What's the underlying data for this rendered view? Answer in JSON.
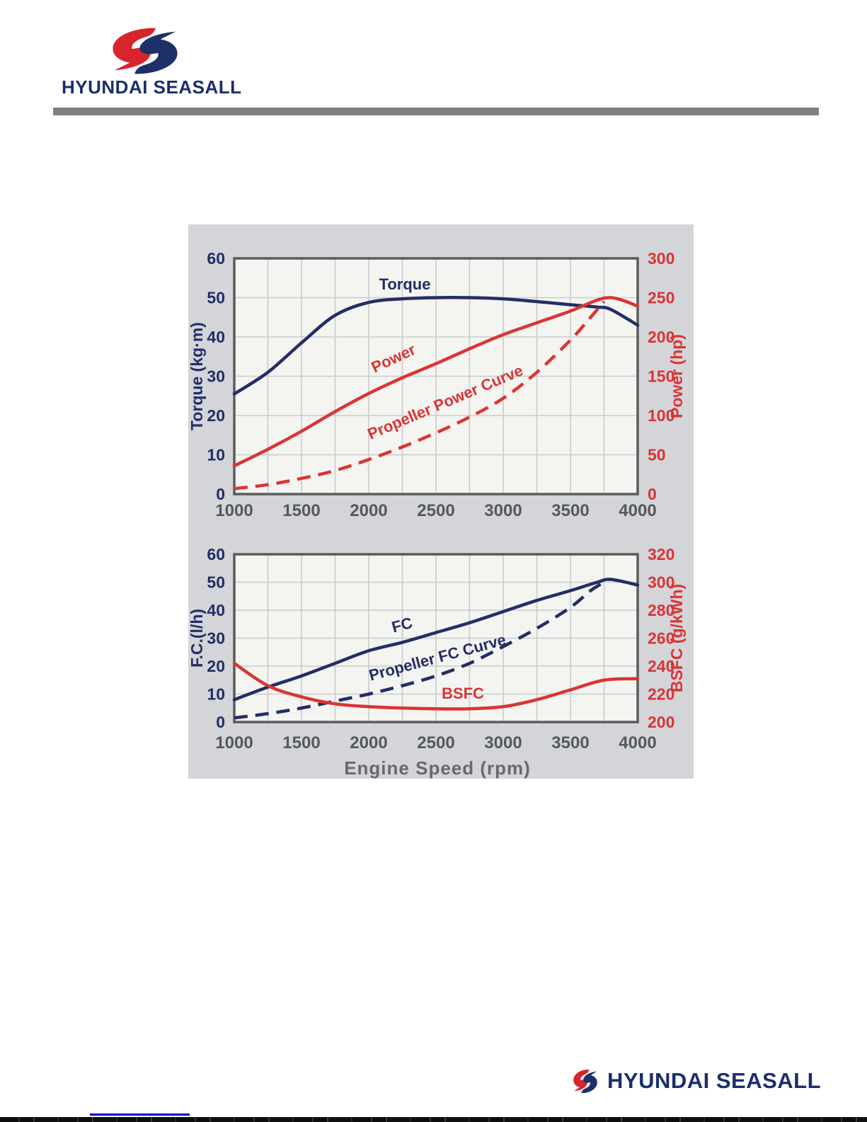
{
  "header": {
    "brand": "HYUNDAI SEASALL"
  },
  "footer": {
    "brand": "HYUNDAI SEASALL"
  },
  "colors": {
    "navy": "#232e66",
    "red": "#d93534",
    "brand_navy": "#1c2e6b",
    "logo_red": "#d8242c",
    "logo_navy": "#1e3068",
    "panel_bg": "#d3d5d9",
    "plot_bg": "#f4f4f1",
    "grid": "#c9cbce",
    "plot_border": "#5a5c5e",
    "tick_gray": "#55585e",
    "axis_gray": "#66696e",
    "header_bar": "#7f8080",
    "link_blue": "#0000cc"
  },
  "chart_data": [
    {
      "type": "line",
      "title": "",
      "xlabel": "",
      "x_range": [
        1000,
        4000
      ],
      "x_ticks": [
        1000,
        1500,
        2000,
        2500,
        3000,
        3500,
        4000
      ],
      "x_minor_step": 250,
      "grid": true,
      "legend_position": "inline-labels",
      "left_axis": {
        "label": "Torque (kg·m)",
        "range": [
          0,
          60
        ],
        "ticks": [
          0,
          10,
          20,
          30,
          40,
          50,
          60
        ],
        "color": "navy"
      },
      "right_axis": {
        "label": "Power (hp)",
        "range": [
          0,
          300
        ],
        "ticks": [
          0,
          50,
          100,
          150,
          200,
          250,
          300
        ],
        "color": "red"
      },
      "series": [
        {
          "name": "Torque",
          "axis": "left",
          "line": "solid",
          "color": "navy",
          "x": [
            1000,
            1250,
            1500,
            1750,
            2000,
            2250,
            2500,
            2750,
            3000,
            3250,
            3500,
            3700,
            3800,
            4000
          ],
          "y": [
            25.5,
            31,
            38.5,
            45.5,
            48.8,
            49.7,
            50,
            50,
            49.7,
            49,
            48.2,
            47.6,
            47,
            43
          ]
        },
        {
          "name": "Power",
          "axis": "right",
          "line": "solid",
          "color": "red",
          "x": [
            1000,
            1250,
            1500,
            1750,
            2000,
            2250,
            2500,
            2750,
            3000,
            3250,
            3500,
            3700,
            3800,
            3900,
            4000
          ],
          "y": [
            36,
            57,
            80,
            105,
            128,
            148,
            166,
            185,
            203,
            218,
            233,
            247,
            250,
            246,
            239
          ]
        },
        {
          "name": "Propeller Power Curve",
          "axis": "right",
          "line": "dashed",
          "color": "red",
          "x": [
            1000,
            1250,
            1500,
            1750,
            2000,
            2250,
            2500,
            2750,
            3000,
            3250,
            3500,
            3650,
            3750
          ],
          "y": [
            7,
            12,
            20,
            30,
            44,
            60,
            78,
            98,
            122,
            155,
            196,
            225,
            245
          ]
        }
      ],
      "curve_labels": [
        {
          "text": "Torque",
          "color": "navy",
          "x": 306,
          "y": 92,
          "rotate": 0
        },
        {
          "text": "Power",
          "color": "red",
          "x": 293,
          "y": 196,
          "rotate": -25
        },
        {
          "text": "Propeller Power Curve",
          "color": "red",
          "x": 366,
          "y": 258,
          "rotate": -23
        }
      ]
    },
    {
      "type": "line",
      "title": "",
      "xlabel": "Engine Speed (rpm)",
      "x_range": [
        1000,
        4000
      ],
      "x_ticks": [
        1000,
        1500,
        2000,
        2500,
        3000,
        3500,
        4000
      ],
      "x_minor_step": 250,
      "grid": true,
      "legend_position": "inline-labels",
      "left_axis": {
        "label": "F.C.(l/h)",
        "range": [
          0,
          60
        ],
        "ticks": [
          0,
          10,
          20,
          30,
          40,
          50,
          60
        ],
        "color": "navy"
      },
      "right_axis": {
        "label": "BSFC (g/kWh)",
        "range": [
          200,
          320
        ],
        "ticks": [
          200,
          220,
          240,
          260,
          280,
          300,
          320
        ],
        "color": "red"
      },
      "series": [
        {
          "name": "FC",
          "axis": "left",
          "line": "solid",
          "color": "navy",
          "x": [
            1000,
            1250,
            1500,
            1750,
            2000,
            2250,
            2500,
            2750,
            3000,
            3250,
            3500,
            3700,
            3800,
            4000
          ],
          "y": [
            8,
            12.5,
            16.5,
            21,
            25.5,
            28.5,
            32,
            35.5,
            39.5,
            43.5,
            47,
            50,
            51,
            49
          ]
        },
        {
          "name": "Propeller FC Curve",
          "axis": "left",
          "line": "dashed",
          "color": "navy",
          "x": [
            1000,
            1250,
            1500,
            1750,
            2000,
            2250,
            2500,
            2750,
            3000,
            3250,
            3500,
            3650,
            3750
          ],
          "y": [
            1.5,
            3,
            5,
            7.5,
            10,
            13,
            16.5,
            21,
            27,
            33.5,
            41,
            47,
            50
          ]
        },
        {
          "name": "BSFC",
          "axis": "right",
          "line": "solid",
          "color": "red",
          "x": [
            1000,
            1250,
            1500,
            1750,
            2000,
            2250,
            2500,
            2750,
            3000,
            3250,
            3500,
            3750,
            4000
          ],
          "y": [
            242,
            226,
            218,
            213,
            211,
            210,
            209.5,
            209.5,
            211,
            216,
            223,
            230,
            231
          ]
        }
      ],
      "curve_labels": [
        {
          "text": "FC",
          "color": "navy",
          "x": 304,
          "y": 573,
          "rotate": -15
        },
        {
          "text": "Propeller FC Curve",
          "color": "navy",
          "x": 354,
          "y": 619,
          "rotate": -15
        },
        {
          "text": "BSFC",
          "color": "red",
          "x": 388,
          "y": 670,
          "rotate": 0
        }
      ]
    }
  ]
}
